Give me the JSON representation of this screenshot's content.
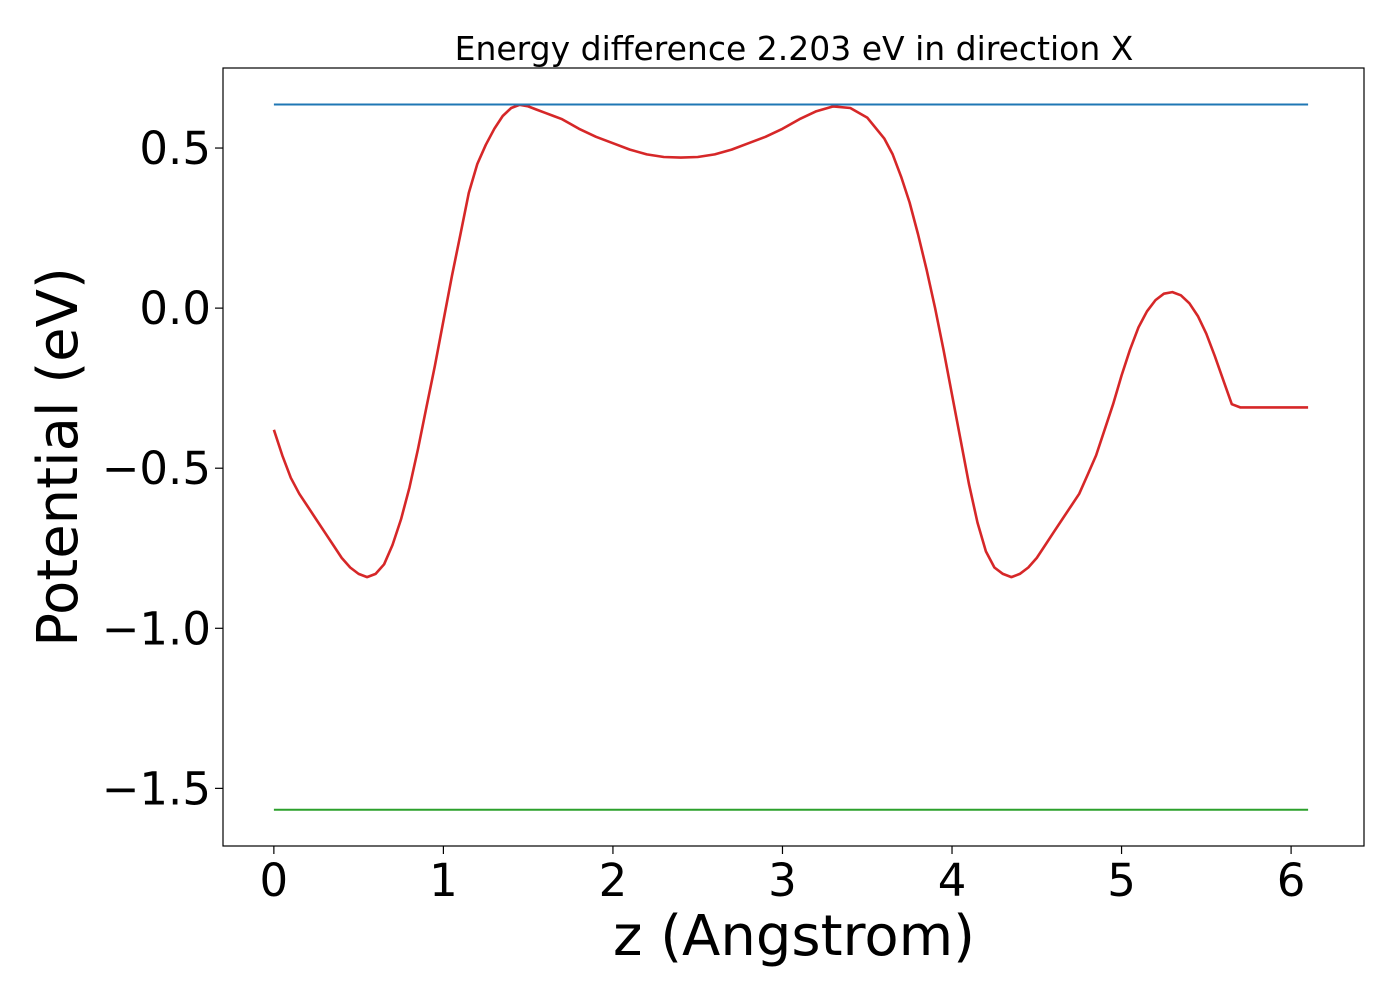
{
  "chart_data": {
    "type": "line",
    "title": "Energy difference 2.203 eV in direction X",
    "xlabel": "z (Angstrom)",
    "ylabel": "Potential (eV)",
    "xlim": [
      -0.3,
      6.43
    ],
    "ylim": [
      -1.68,
      0.75
    ],
    "xticks": [
      0,
      1,
      2,
      3,
      4,
      5,
      6
    ],
    "xtick_labels": [
      "0",
      "1",
      "2",
      "3",
      "4",
      "5",
      "6"
    ],
    "yticks": [
      0.5,
      0.0,
      -0.5,
      -1.0,
      -1.5
    ],
    "ytick_labels": [
      "0.5",
      "0.0",
      "−0.5",
      "−1.0",
      "−1.5"
    ],
    "grid": false,
    "legend": "none",
    "series": [
      {
        "color": "#d62728",
        "x": [
          0.0,
          0.05,
          0.1,
          0.15,
          0.2,
          0.25,
          0.3,
          0.35,
          0.4,
          0.45,
          0.5,
          0.55,
          0.6,
          0.65,
          0.7,
          0.75,
          0.8,
          0.85,
          0.9,
          0.95,
          1.0,
          1.05,
          1.1,
          1.15,
          1.2,
          1.25,
          1.3,
          1.35,
          1.4,
          1.45,
          1.5,
          1.55,
          1.6,
          1.65,
          1.7,
          1.75,
          1.8,
          1.9,
          2.0,
          2.1,
          2.2,
          2.3,
          2.4,
          2.5,
          2.6,
          2.7,
          2.8,
          2.9,
          3.0,
          3.1,
          3.2,
          3.3,
          3.4,
          3.5,
          3.6,
          3.65,
          3.7,
          3.75,
          3.8,
          3.85,
          3.9,
          3.95,
          4.0,
          4.05,
          4.1,
          4.15,
          4.2,
          4.25,
          4.3,
          4.35,
          4.4,
          4.45,
          4.5,
          4.55,
          4.6,
          4.65,
          4.7,
          4.75,
          4.8,
          4.85,
          4.9,
          4.95,
          5.0,
          5.05,
          5.1,
          5.15,
          5.2,
          5.25,
          5.3,
          5.35,
          5.4,
          5.45,
          5.5,
          5.55,
          5.6,
          5.65,
          5.7,
          5.75,
          5.8,
          5.85,
          5.9,
          5.95,
          6.0,
          6.05,
          6.1
        ],
        "y": [
          -0.38,
          -0.46,
          -0.53,
          -0.58,
          -0.62,
          -0.66,
          -0.7,
          -0.74,
          -0.78,
          -0.81,
          -0.83,
          -0.84,
          -0.83,
          -0.8,
          -0.74,
          -0.66,
          -0.56,
          -0.44,
          -0.31,
          -0.18,
          -0.04,
          0.1,
          0.23,
          0.36,
          0.45,
          0.51,
          0.56,
          0.6,
          0.625,
          0.635,
          0.63,
          0.62,
          0.61,
          0.6,
          0.59,
          0.575,
          0.56,
          0.535,
          0.515,
          0.495,
          0.48,
          0.472,
          0.47,
          0.472,
          0.48,
          0.495,
          0.515,
          0.535,
          0.56,
          0.59,
          0.615,
          0.63,
          0.625,
          0.595,
          0.53,
          0.48,
          0.41,
          0.33,
          0.23,
          0.12,
          0.0,
          -0.13,
          -0.27,
          -0.41,
          -0.55,
          -0.67,
          -0.76,
          -0.81,
          -0.83,
          -0.84,
          -0.83,
          -0.81,
          -0.78,
          -0.74,
          -0.7,
          -0.66,
          -0.62,
          -0.58,
          -0.52,
          -0.46,
          -0.38,
          -0.3,
          -0.21,
          -0.13,
          -0.06,
          -0.01,
          0.025,
          0.045,
          0.05,
          0.04,
          0.015,
          -0.025,
          -0.08,
          -0.15,
          -0.225,
          -0.3,
          -0.31,
          -0.31,
          -0.31,
          -0.31,
          -0.31,
          -0.31,
          -0.31,
          -0.31,
          -0.31
        ]
      },
      {
        "color": "#1f77b4",
        "x": [
          0.0,
          6.1
        ],
        "y": [
          0.636,
          0.636
        ]
      },
      {
        "color": "#2ca02c",
        "x": [
          0.0,
          6.1
        ],
        "y": [
          -1.567,
          -1.567
        ]
      }
    ]
  }
}
